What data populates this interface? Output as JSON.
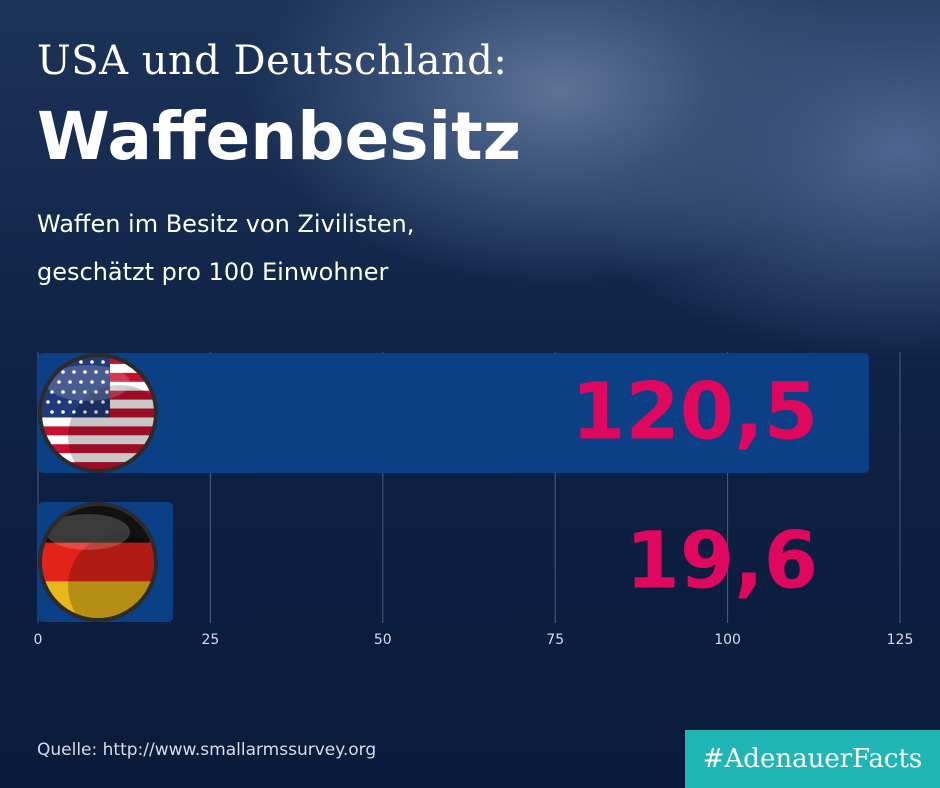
{
  "header": {
    "supertitle": "USA und Deutschland:",
    "title": "Waffenbesitz",
    "subtitle_line1": "Waffen im Besitz von Zivilisten,",
    "subtitle_line2": "geschätzt pro 100 Einwohner"
  },
  "footer": {
    "source": "Quelle: http://www.smallarmssurvey.org",
    "hashtag": "#AdenauerFacts"
  },
  "colors": {
    "bar": "#0b3f86",
    "value_text": "#e0075e",
    "grid": "#4a5d7e",
    "tick_text": "#d7dde8",
    "hashtag_bg": "#20b6b6"
  },
  "chart_data": {
    "type": "bar",
    "orientation": "horizontal",
    "title": "Waffenbesitz",
    "subtitle": "Waffen im Besitz von Zivilisten, geschätzt pro 100 Einwohner",
    "categories": [
      "USA",
      "Deutschland"
    ],
    "values": [
      120.5,
      19.6
    ],
    "value_labels": [
      "120,5",
      "19,6"
    ],
    "xlim": [
      0,
      125
    ],
    "xticks": [
      0,
      25,
      50,
      75,
      100,
      125
    ],
    "xtick_labels": [
      "0",
      "25",
      "50",
      "75",
      "100",
      "125"
    ],
    "grid": true,
    "flags": [
      "us-flag-icon",
      "germany-flag-icon"
    ]
  }
}
